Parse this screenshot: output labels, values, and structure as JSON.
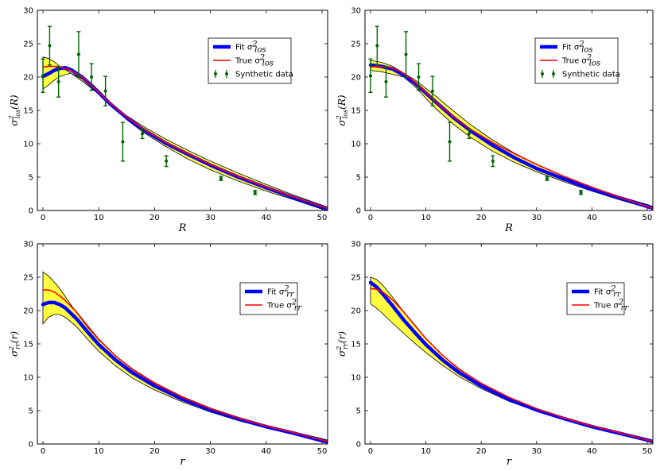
{
  "chart_data": [
    {
      "type": "line",
      "panel": "top-left",
      "xlabel": "R",
      "ylabel": {
        "base": "σ",
        "sup": "2",
        "sub": "los",
        "arg": "(R)"
      },
      "xlim": [
        -1,
        51
      ],
      "ylim": [
        0,
        30
      ],
      "xticks": [
        "0",
        "10",
        "20",
        "30",
        "40",
        "50"
      ],
      "yticks": [
        "0",
        "5",
        "10",
        "15",
        "20",
        "25",
        "30"
      ],
      "legend": {
        "placement": "top-right",
        "entries": [
          {
            "kind": "fit",
            "label": "Fit σ",
            "sup": "2",
            "sub": "los"
          },
          {
            "kind": "true",
            "label": "True σ",
            "sup": "2",
            "sub": "los"
          },
          {
            "kind": "data",
            "label": "Synthetic data",
            "sup": "",
            "sub": ""
          }
        ]
      },
      "series": [
        {
          "name": "Band upper",
          "x": [
            0,
            1,
            2,
            3,
            5,
            7,
            9,
            12,
            15,
            18,
            22,
            26,
            30,
            35,
            40,
            45,
            50,
            51
          ],
          "values": [
            23,
            22.8,
            22.3,
            21.6,
            20.6,
            19.4,
            18.1,
            16.1,
            14.2,
            12.6,
            10.7,
            9.0,
            7.4,
            5.6,
            3.9,
            2.3,
            0.8,
            0.5
          ]
        },
        {
          "name": "Band lower",
          "x": [
            0,
            1,
            2,
            3,
            5,
            7,
            9,
            12,
            15,
            18,
            22,
            26,
            30,
            35,
            40,
            45,
            50,
            51
          ],
          "values": [
            18.2,
            18.8,
            19.5,
            20.1,
            20.6,
            19.7,
            18.3,
            15.9,
            13.6,
            11.7,
            9.6,
            7.7,
            6.1,
            4.4,
            2.9,
            1.6,
            0.2,
            0.05
          ]
        },
        {
          "name": "Fit",
          "x": [
            0,
            1,
            2,
            3,
            4,
            5,
            7,
            9,
            12,
            15,
            18,
            22,
            26,
            30,
            35,
            40,
            45,
            50,
            51
          ],
          "values": [
            20.1,
            20.5,
            21.0,
            21.3,
            21.4,
            21.1,
            20.0,
            18.5,
            16.0,
            13.9,
            12.1,
            10.1,
            8.4,
            6.8,
            5.0,
            3.4,
            1.9,
            0.5,
            0.25
          ]
        },
        {
          "name": "True",
          "x": [
            0,
            1,
            2,
            3,
            4,
            5,
            7,
            9,
            12,
            15,
            18,
            22,
            26,
            30,
            35,
            40,
            45,
            50,
            51
          ],
          "values": [
            21.5,
            21.6,
            21.6,
            21.5,
            21.3,
            21.0,
            20.0,
            18.5,
            16.1,
            14.0,
            12.2,
            10.2,
            8.5,
            6.9,
            5.1,
            3.5,
            2.0,
            0.6,
            0.3
          ]
        },
        {
          "name": "Synthetic data",
          "x": [
            0,
            1.2,
            2.8,
            6.4,
            8.7,
            11.2,
            14.3,
            17.8,
            22.1,
            31.9,
            38
          ],
          "values": [
            20.2,
            24.7,
            19.3,
            23.4,
            20.0,
            17.9,
            10.3,
            11.5,
            7.4,
            4.8,
            2.7
          ],
          "errors": [
            2.5,
            2.9,
            2.3,
            3.4,
            2.0,
            2.2,
            2.9,
            0.7,
            0.8,
            0.3,
            0.3
          ]
        }
      ]
    },
    {
      "type": "line",
      "panel": "top-right",
      "xlabel": "R",
      "ylabel": {
        "base": "σ",
        "sup": "2",
        "sub": "los",
        "arg": "(R)"
      },
      "xlim": [
        -1,
        51
      ],
      "ylim": [
        0,
        30
      ],
      "xticks": [
        "0",
        "10",
        "20",
        "30",
        "40",
        "50"
      ],
      "yticks": [
        "0",
        "5",
        "10",
        "15",
        "20",
        "25",
        "30"
      ],
      "legend": {
        "placement": "top-right",
        "entries": [
          {
            "kind": "fit",
            "label": "Fit σ",
            "sup": "2",
            "sub": "los"
          },
          {
            "kind": "true",
            "label": "True σ",
            "sup": "2",
            "sub": "los"
          },
          {
            "kind": "data",
            "label": "Synthetic data",
            "sup": "",
            "sub": ""
          }
        ]
      },
      "series": [
        {
          "name": "Band upper",
          "x": [
            0,
            2,
            4,
            6,
            8,
            10,
            12,
            15,
            18,
            22,
            26,
            30,
            35,
            40,
            45,
            50,
            51
          ],
          "values": [
            22.5,
            22.2,
            21.6,
            20.6,
            19.6,
            18.3,
            17.0,
            14.9,
            12.9,
            10.6,
            8.6,
            6.9,
            5.1,
            3.5,
            2.1,
            0.9,
            0.6
          ]
        },
        {
          "name": "Band lower",
          "x": [
            0,
            2,
            4,
            6,
            8,
            10,
            12,
            15,
            18,
            22,
            26,
            30,
            35,
            40,
            45,
            50,
            51
          ],
          "values": [
            21.0,
            20.8,
            20.4,
            20.0,
            18.6,
            16.8,
            15.1,
            12.9,
            11.0,
            8.9,
            7.2,
            5.8,
            4.3,
            2.9,
            1.6,
            0.4,
            0.15
          ]
        },
        {
          "name": "Fit",
          "x": [
            0,
            2,
            4,
            6,
            8,
            10,
            12,
            15,
            18,
            22,
            26,
            30,
            35,
            40,
            45,
            50,
            51
          ],
          "values": [
            21.8,
            21.6,
            21.2,
            20.3,
            19.1,
            17.6,
            16.1,
            13.9,
            12.0,
            9.8,
            7.9,
            6.3,
            4.7,
            3.2,
            1.9,
            0.6,
            0.35
          ]
        },
        {
          "name": "True",
          "x": [
            0,
            1,
            2,
            3,
            4,
            5,
            7,
            9,
            12,
            15,
            18,
            22,
            26,
            30,
            35,
            40,
            45,
            50,
            51
          ],
          "values": [
            21.5,
            21.6,
            21.6,
            21.5,
            21.3,
            21.0,
            20.0,
            18.5,
            16.1,
            14.0,
            12.2,
            10.2,
            8.5,
            6.9,
            5.1,
            3.5,
            2.0,
            0.6,
            0.3
          ]
        },
        {
          "name": "Synthetic data",
          "x": [
            0,
            1.2,
            2.8,
            6.4,
            8.7,
            11.2,
            14.3,
            17.8,
            22.1,
            31.9,
            38
          ],
          "values": [
            20.2,
            24.7,
            19.3,
            23.4,
            20.0,
            17.9,
            10.3,
            11.5,
            7.4,
            4.8,
            2.7
          ],
          "errors": [
            2.5,
            2.9,
            2.3,
            3.4,
            2.0,
            2.2,
            2.9,
            0.7,
            0.8,
            0.3,
            0.3
          ]
        }
      ]
    },
    {
      "type": "line",
      "panel": "bottom-left",
      "xlabel": "r",
      "ylabel": {
        "base": "σ",
        "sup": "2",
        "sub": "rr",
        "arg": "(r)"
      },
      "xlim": [
        -1,
        51
      ],
      "ylim": [
        0,
        30
      ],
      "xticks": [
        "0",
        "10",
        "20",
        "30",
        "40",
        "50"
      ],
      "yticks": [
        "0",
        "5",
        "10",
        "15",
        "20",
        "25",
        "30"
      ],
      "legend": {
        "placement": "top-right",
        "entries": [
          {
            "kind": "fit",
            "label": "Fit σ",
            "sup": "2",
            "sub": "rr"
          },
          {
            "kind": "true",
            "label": "True σ",
            "sup": "2",
            "sub": "rr"
          }
        ]
      },
      "series": [
        {
          "name": "Band upper",
          "x": [
            0,
            1,
            2,
            3,
            4,
            6,
            8,
            10,
            13,
            16,
            20,
            25,
            30,
            35,
            40,
            45,
            50,
            51
          ],
          "values": [
            25.8,
            25.2,
            24.3,
            23.3,
            22.1,
            19.7,
            17.5,
            15.6,
            13.2,
            11.3,
            9.2,
            7.1,
            5.4,
            4.0,
            2.8,
            1.8,
            0.8,
            0.6
          ]
        },
        {
          "name": "Band lower",
          "x": [
            0,
            1,
            2,
            3,
            4,
            6,
            8,
            10,
            13,
            16,
            20,
            25,
            30,
            35,
            40,
            45,
            50,
            51
          ],
          "values": [
            18.0,
            19.0,
            19.4,
            19.4,
            19.0,
            17.6,
            15.7,
            13.9,
            11.7,
            9.9,
            8.1,
            6.3,
            4.8,
            3.5,
            2.4,
            1.4,
            0.3,
            0.1
          ]
        },
        {
          "name": "Fit",
          "x": [
            0,
            1,
            2,
            3,
            4,
            6,
            8,
            10,
            13,
            16,
            20,
            25,
            30,
            35,
            40,
            45,
            50,
            51
          ],
          "values": [
            20.9,
            21.2,
            21.2,
            20.9,
            20.4,
            18.8,
            16.8,
            14.9,
            12.6,
            10.7,
            8.7,
            6.7,
            5.1,
            3.8,
            2.6,
            1.6,
            0.5,
            0.3
          ]
        },
        {
          "name": "True",
          "x": [
            0,
            1,
            2,
            3,
            4,
            6,
            8,
            10,
            13,
            16,
            20,
            25,
            30,
            35,
            40,
            45,
            50,
            51
          ],
          "values": [
            23.1,
            23.1,
            22.8,
            22.2,
            21.5,
            19.8,
            17.7,
            15.7,
            13.2,
            11.2,
            9.1,
            7.0,
            5.3,
            3.9,
            2.7,
            1.7,
            0.6,
            0.4
          ]
        }
      ]
    },
    {
      "type": "line",
      "panel": "bottom-right",
      "xlabel": "r",
      "ylabel": {
        "base": "σ",
        "sup": "2",
        "sub": "rr",
        "arg": "(r)"
      },
      "xlim": [
        -1,
        51
      ],
      "ylim": [
        0,
        30
      ],
      "xticks": [
        "0",
        "10",
        "20",
        "30",
        "40",
        "50"
      ],
      "yticks": [
        "0",
        "5",
        "10",
        "15",
        "20",
        "25",
        "30"
      ],
      "legend": {
        "placement": "top-right",
        "entries": [
          {
            "kind": "fit",
            "label": "Fit σ",
            "sup": "2",
            "sub": "rr"
          },
          {
            "kind": "true",
            "label": "True σ",
            "sup": "2",
            "sub": "rr"
          }
        ]
      },
      "series": [
        {
          "name": "Band upper",
          "x": [
            0,
            1,
            2,
            4,
            6,
            8,
            10,
            13,
            16,
            20,
            25,
            30,
            35,
            40,
            45,
            50,
            51
          ],
          "values": [
            25.0,
            24.7,
            24.0,
            22.0,
            19.8,
            17.7,
            15.8,
            13.3,
            11.3,
            9.1,
            7.0,
            5.3,
            3.9,
            2.7,
            1.7,
            0.8,
            0.6
          ]
        },
        {
          "name": "Band lower",
          "x": [
            0,
            1,
            2,
            4,
            6,
            8,
            10,
            13,
            16,
            20,
            25,
            30,
            35,
            40,
            45,
            50,
            51
          ],
          "values": [
            21.0,
            20.4,
            19.7,
            18.1,
            16.6,
            15.1,
            13.7,
            11.8,
            10.1,
            8.3,
            6.4,
            4.9,
            3.6,
            2.5,
            1.5,
            0.4,
            0.2
          ]
        },
        {
          "name": "Fit",
          "x": [
            0,
            1,
            2,
            4,
            6,
            8,
            10,
            13,
            16,
            20,
            25,
            30,
            35,
            40,
            45,
            50,
            51
          ],
          "values": [
            24.2,
            23.6,
            22.7,
            20.7,
            18.6,
            16.7,
            14.9,
            12.6,
            10.7,
            8.7,
            6.7,
            5.1,
            3.8,
            2.6,
            1.6,
            0.6,
            0.35
          ]
        },
        {
          "name": "True",
          "x": [
            0,
            1,
            2,
            4,
            6,
            8,
            10,
            13,
            16,
            20,
            25,
            30,
            35,
            40,
            45,
            50,
            51
          ],
          "values": [
            23.3,
            23.2,
            22.9,
            21.6,
            19.8,
            17.8,
            15.8,
            13.3,
            11.2,
            9.1,
            7.0,
            5.3,
            3.9,
            2.7,
            1.7,
            0.6,
            0.4
          ]
        }
      ]
    }
  ]
}
